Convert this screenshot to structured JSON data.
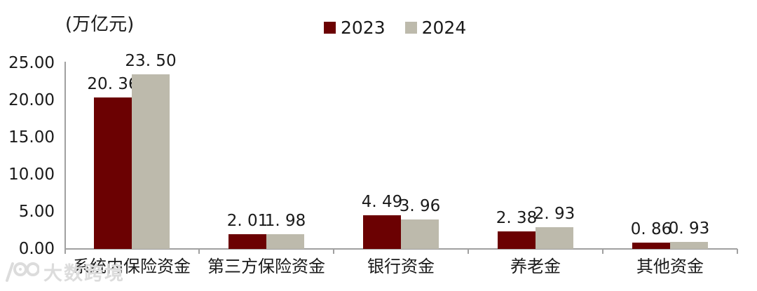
{
  "title_unit": "(万亿元)",
  "legend": [
    {
      "label": "2023",
      "color": "#6B0102"
    },
    {
      "label": "2024",
      "color": "#BDBAAC"
    }
  ],
  "watermark": {
    "text": "大数跨境",
    "logo": "10100-logo"
  },
  "colors": {
    "axis": "#A0A0A0",
    "text": "#1A1A1A",
    "watermark": "#DCDCDC"
  },
  "chart_data": {
    "type": "bar",
    "title": "",
    "ylabel": "(万亿元)",
    "xlabel": "",
    "categories": [
      "系统内保险资金",
      "第三方保险资金",
      "银行资金",
      "养老金",
      "其他资金"
    ],
    "series": [
      {
        "name": "2023",
        "color": "#6B0102",
        "values": [
          20.36,
          2.01,
          4.49,
          2.38,
          0.86
        ],
        "labels": [
          "20. 36",
          "2. 01",
          "4. 49",
          "2. 38",
          "0. 86"
        ]
      },
      {
        "name": "2024",
        "color": "#BDBAAC",
        "values": [
          23.5,
          1.98,
          3.96,
          2.93,
          0.93
        ],
        "labels": [
          "23. 50",
          "1. 98",
          "3. 96",
          "2. 93",
          "0. 93"
        ]
      }
    ],
    "y_axis": {
      "min": 0,
      "max": 25,
      "tick_labels": [
        "25.00",
        "20.00",
        "15.00",
        "10.00",
        "5.00",
        "0.00"
      ],
      "tick_values": [
        25,
        20,
        15,
        10,
        5,
        0
      ]
    },
    "grid": false,
    "legend_position": "top-center",
    "data_labels": true
  }
}
